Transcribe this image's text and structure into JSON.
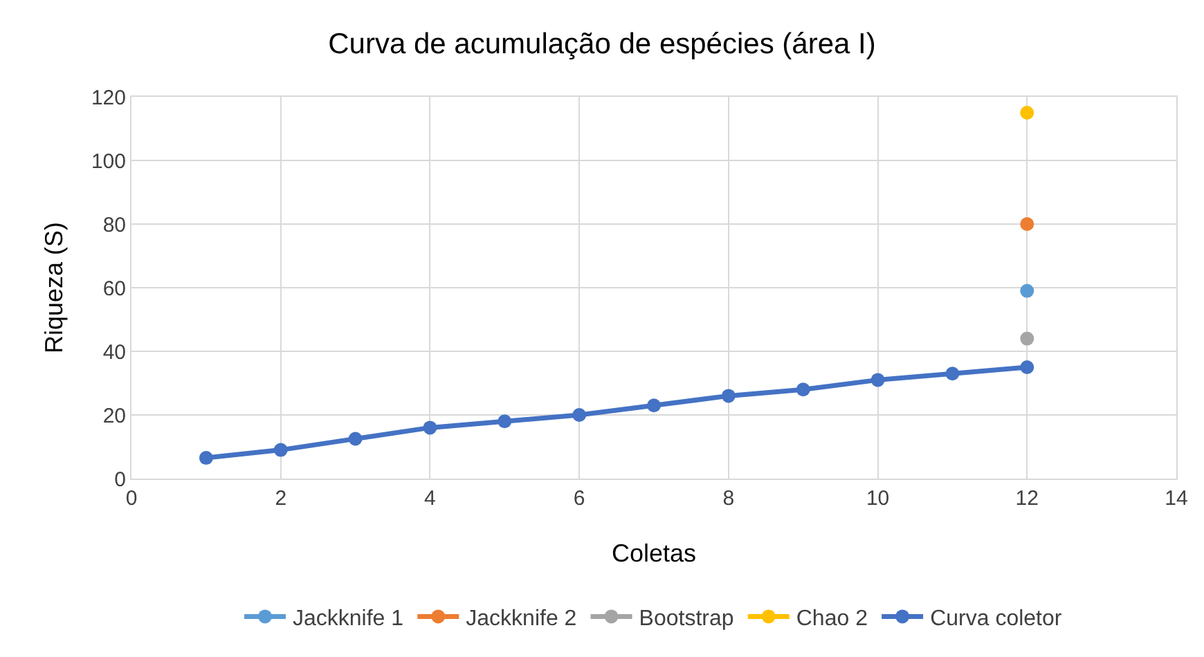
{
  "chart_data": {
    "type": "line",
    "title": "Curva de acumulação de espécies (área I)",
    "xlabel": "Coletas",
    "ylabel": "Riqueza (S)",
    "xlim": [
      0,
      14
    ],
    "xticks": [
      0,
      2,
      4,
      6,
      8,
      10,
      12,
      14
    ],
    "ylim": [
      0,
      120
    ],
    "yticks": [
      0,
      20,
      40,
      60,
      80,
      100,
      120
    ],
    "grid": true,
    "legend": "bottom",
    "marker": "circle",
    "line_style": "solid",
    "series": [
      {
        "name": "Jackknife 1",
        "color": "#5b9bd5",
        "x": [
          12
        ],
        "values": [
          59
        ]
      },
      {
        "name": "Jackknife 2",
        "color": "#ed7d31",
        "x": [
          12
        ],
        "values": [
          80
        ]
      },
      {
        "name": "Bootstrap",
        "color": "#a5a5a5",
        "x": [
          12
        ],
        "values": [
          44
        ]
      },
      {
        "name": "Chao 2",
        "color": "#ffc000",
        "x": [
          12
        ],
        "values": [
          115
        ]
      },
      {
        "name": "Curva coletor",
        "color": "#4472c4",
        "x": [
          1,
          2,
          3,
          4,
          5,
          6,
          7,
          8,
          9,
          10,
          11,
          12
        ],
        "values": [
          6.5,
          9,
          12.5,
          16,
          18,
          20,
          23,
          26,
          28,
          31,
          33,
          35
        ]
      }
    ]
  }
}
